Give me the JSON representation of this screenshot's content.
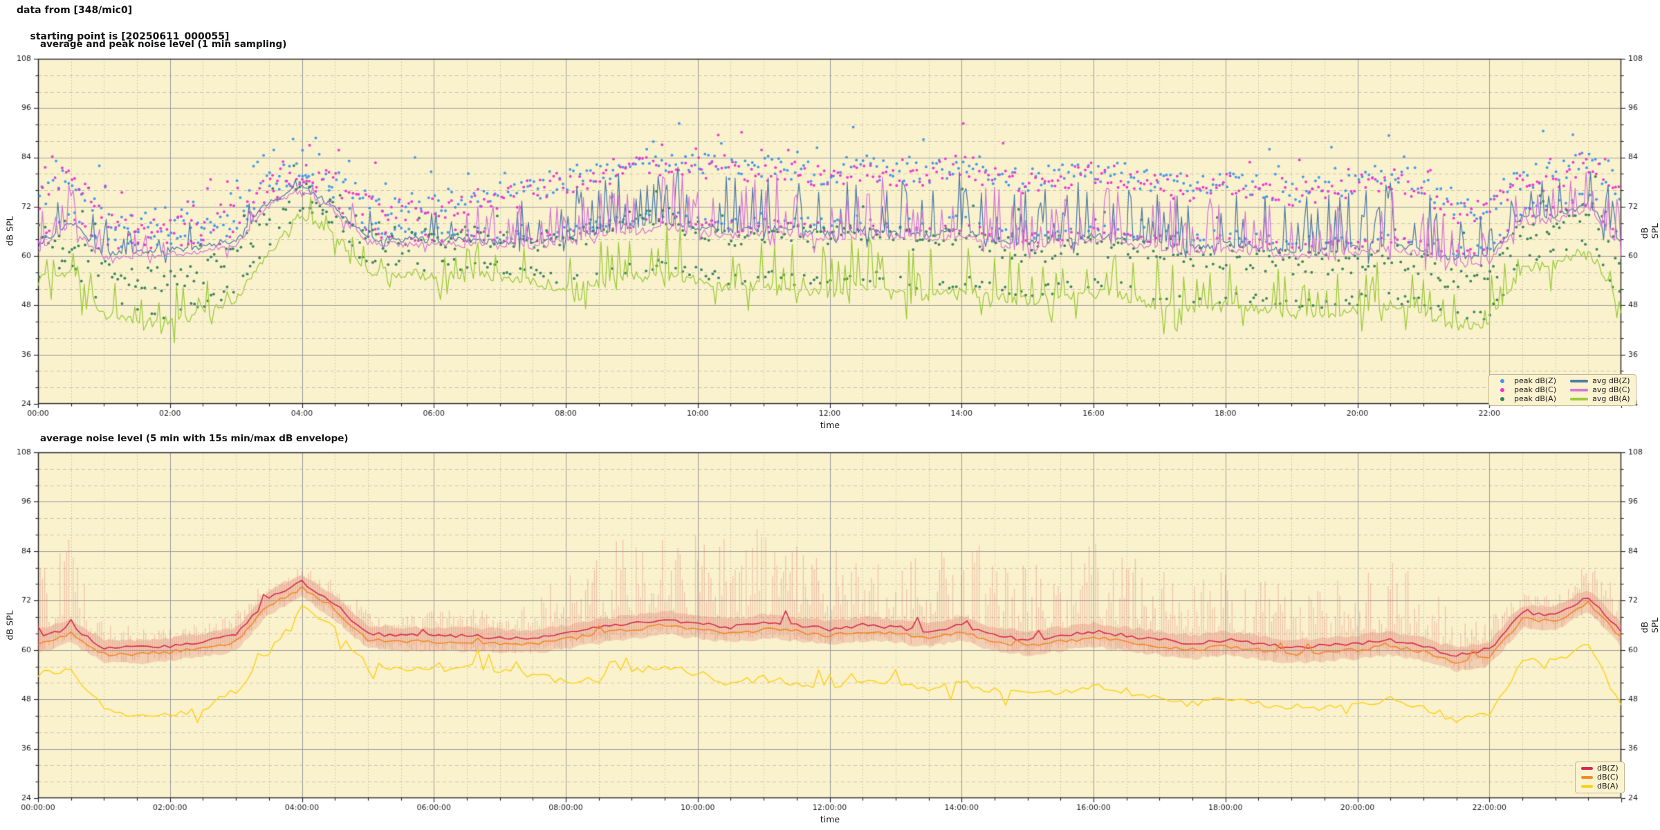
{
  "header": {
    "line1": "data from [348/mic0]",
    "line2": "starting point is [20250611_000055]"
  },
  "colors": {
    "figure_bg": "#ffffff",
    "plot_bg": "#faf1cd",
    "grid_major": "#9b9b9b",
    "grid_minor": "#c6c1a9",
    "spine": "#262626",
    "tick_text": "#1a1a1a",
    "legend_bg": "#fbf2d0",
    "legend_border": "#c3b98f",
    "envelope_fill": "rgba(222,120,108,0.28)",
    "envelope_stroke": "rgba(218,104,92,0.30)"
  },
  "chart_data": [
    {
      "type": "line+scatter",
      "title": "average and peak noise level (1 min sampling)",
      "xlabel": "time",
      "ylabel": "dB SPL",
      "ylim": [
        24,
        108
      ],
      "y_major_step": 12,
      "y_minor_step": 4,
      "y_tick_labels": [
        "108",
        "96",
        "84",
        "72",
        "60",
        "48",
        "36",
        "24"
      ],
      "x_range_hours": [
        0,
        24
      ],
      "x_major_step_hours": 2,
      "x_minor_step_hours": 0.5,
      "x_tick_labels": [
        "00:00",
        "02:00",
        "04:00",
        "06:00",
        "08:00",
        "10:00",
        "12:00",
        "14:00",
        "16:00",
        "18:00",
        "20:00",
        "22:00"
      ],
      "legend_position": "lower right",
      "node_step_hours": 0.5,
      "series": [
        {
          "name": "avg dB(Z)",
          "kind": "line",
          "color": "#4e7ca9",
          "values": [
            62.5,
            68.5,
            60.5,
            61,
            61.5,
            62.5,
            64,
            73.5,
            77,
            72,
            64.5,
            64,
            64,
            64,
            63.5,
            63.5,
            64.5,
            66,
            67,
            68,
            67,
            66,
            67,
            66.5,
            65.5,
            66.5,
            66,
            65,
            66.5,
            64,
            63,
            64,
            65,
            64,
            63,
            62,
            63,
            62,
            61,
            61.5,
            62,
            63,
            61.5,
            59,
            60,
            69.5,
            70,
            72.5,
            63
          ]
        },
        {
          "name": "avg dB(C)",
          "kind": "line",
          "color": "#d678d6",
          "values": [
            61.3,
            67.3,
            59.3,
            59.8,
            60.3,
            61.3,
            62.8,
            72.3,
            76,
            70.8,
            63.3,
            62.8,
            62.8,
            62.8,
            62.3,
            62.3,
            63.3,
            64.8,
            65.8,
            66.8,
            65.8,
            64.8,
            65.8,
            65.3,
            64.3,
            65.3,
            64.8,
            63.8,
            65.3,
            62.8,
            61.8,
            62.8,
            63.8,
            62.8,
            61.8,
            60.8,
            61.8,
            60.8,
            59.8,
            60.3,
            60.8,
            61.8,
            60.3,
            57.8,
            58.8,
            68.3,
            68.8,
            71.3,
            61.8
          ]
        },
        {
          "name": "avg dB(A)",
          "kind": "line",
          "color": "#9bcb39",
          "values": [
            54,
            56,
            46,
            44,
            44,
            46,
            50,
            60,
            70.5,
            65,
            56,
            56,
            55,
            56,
            55,
            54,
            52,
            53,
            55,
            56,
            54,
            52,
            53,
            52,
            51,
            53,
            52,
            50,
            52,
            50,
            49,
            50,
            51,
            50,
            48,
            47,
            48,
            47,
            46,
            46,
            47,
            48,
            46,
            43,
            44,
            57,
            58,
            62,
            47
          ]
        },
        {
          "name": "peak dB(Z)",
          "kind": "scatter",
          "color": "#3d97ec",
          "values": [
            74,
            80,
            70,
            68,
            68,
            69,
            71,
            79,
            81,
            79,
            73,
            72,
            73,
            74,
            75,
            76,
            79,
            81,
            82,
            83,
            82,
            81,
            82,
            81,
            80,
            82,
            81,
            80,
            83,
            80,
            78,
            80,
            81,
            80,
            78,
            77,
            78,
            77,
            76,
            77,
            78,
            80,
            77,
            71,
            72,
            79,
            80,
            84,
            76
          ]
        },
        {
          "name": "peak dB(C)",
          "kind": "scatter",
          "color": "#ee35d3",
          "values": [
            73,
            81,
            69,
            67,
            67,
            68,
            70,
            78,
            80,
            78,
            72,
            71,
            72,
            73,
            74,
            75,
            78,
            80,
            81,
            82,
            81,
            80,
            81,
            80,
            79,
            81,
            80,
            79,
            82,
            79,
            77,
            79,
            80,
            79,
            77,
            76,
            77,
            76,
            75,
            76,
            77,
            79,
            76,
            70,
            71,
            78,
            79,
            83,
            75
          ]
        },
        {
          "name": "peak dB(A)",
          "kind": "scatter",
          "color": "#35845a",
          "values": [
            66,
            63,
            56,
            54,
            54,
            56,
            60,
            70,
            76,
            72,
            64,
            63,
            64,
            65,
            64,
            63,
            64,
            66,
            68,
            69,
            67,
            65,
            66,
            65,
            64,
            66,
            65,
            63,
            65,
            63,
            61,
            62,
            63,
            62,
            60,
            59,
            60,
            59,
            58,
            58,
            59,
            60,
            58,
            54,
            55,
            66,
            67,
            72,
            60
          ]
        }
      ]
    },
    {
      "type": "line+envelope",
      "title": "average noise level (5 min with 15s min/max dB envelope)",
      "xlabel": "time",
      "ylabel": "dB SPL",
      "ylim": [
        24,
        108
      ],
      "y_major_step": 12,
      "y_minor_step": 4,
      "y_tick_labels": [
        "108",
        "96",
        "84",
        "72",
        "60",
        "48",
        "36",
        "24"
      ],
      "x_range_hours": [
        0,
        24
      ],
      "x_major_step_hours": 2,
      "x_minor_step_hours": 0.5,
      "x_tick_labels": [
        "00:00:00",
        "02:00:00",
        "04:00:00",
        "06:00:00",
        "08:00:00",
        "10:00:00",
        "12:00:00",
        "14:00:00",
        "16:00:00",
        "18:00:00",
        "20:00:00",
        "22:00:00"
      ],
      "legend_position": "lower right",
      "node_step_hours": 0.5,
      "series": [
        {
          "name": "dB(Z)",
          "kind": "line",
          "color": "#d7294e",
          "values": [
            63,
            65.5,
            60.5,
            60.5,
            61,
            62,
            63.5,
            72.5,
            76.5,
            71,
            64,
            63.5,
            63.5,
            63.5,
            63,
            63,
            64,
            65.5,
            66.5,
            67.5,
            66.5,
            65.5,
            66.5,
            66,
            65,
            66,
            65.5,
            64.5,
            66,
            63.5,
            62.5,
            63.5,
            64.5,
            63.5,
            62.5,
            61.5,
            62.5,
            61.5,
            60.5,
            61,
            61.5,
            62.5,
            61,
            58.5,
            60,
            69,
            68.5,
            73,
            64.5
          ]
        },
        {
          "name": "dB(C)",
          "kind": "line",
          "color": "#f68c1f",
          "values": [
            61.5,
            64,
            59,
            59,
            59.5,
            60.5,
            62,
            71,
            75,
            69.5,
            62.5,
            62,
            62,
            62,
            61.5,
            61.5,
            62.5,
            64,
            65,
            66,
            65,
            64,
            65,
            64.5,
            63.5,
            64.5,
            64,
            63,
            64.5,
            62,
            61,
            62,
            63,
            62,
            61,
            60,
            61,
            60,
            59,
            59.5,
            60,
            61,
            59.5,
            57,
            58.5,
            67.5,
            67,
            71.5,
            63
          ]
        },
        {
          "name": "dB(A)",
          "kind": "line",
          "color": "#fdd216",
          "values": [
            54,
            55,
            46,
            44,
            44,
            46,
            50,
            60,
            70,
            65,
            56,
            56,
            55,
            56,
            55,
            54,
            52,
            53,
            55,
            56,
            54,
            52,
            53,
            52,
            51,
            53,
            52,
            50,
            52,
            50,
            49,
            50,
            51,
            50,
            48,
            47,
            48,
            47,
            46,
            46,
            47,
            48,
            46,
            43,
            44,
            57,
            57.5,
            61,
            46.5
          ]
        }
      ],
      "envelope": {
        "of_series": "dB(Z)",
        "max": [
          80,
          88,
          67,
          66,
          66,
          67,
          69,
          78,
          80,
          78,
          70,
          70,
          70,
          70,
          70,
          72,
          80,
          88,
          92,
          93,
          90,
          88,
          90,
          89,
          86,
          88,
          87,
          85,
          88,
          84,
          80,
          84,
          86,
          84,
          80,
          78,
          80,
          78,
          76,
          78,
          80,
          84,
          78,
          68,
          68,
          74,
          73,
          82,
          74
        ],
        "min": [
          60,
          62.5,
          57.5,
          57.5,
          58,
          59,
          60.5,
          69.5,
          73.5,
          68,
          61,
          60.5,
          60.5,
          60.5,
          60,
          60,
          61,
          62.5,
          63.5,
          64.5,
          63.5,
          62.5,
          63.5,
          63,
          62,
          63,
          62.5,
          61.5,
          63,
          60.5,
          59.5,
          60.5,
          61.5,
          60.5,
          59.5,
          58.5,
          59.5,
          58.5,
          57.5,
          58,
          58.5,
          59.5,
          58,
          55.5,
          57,
          66,
          65.5,
          70,
          61.5
        ]
      }
    }
  ]
}
